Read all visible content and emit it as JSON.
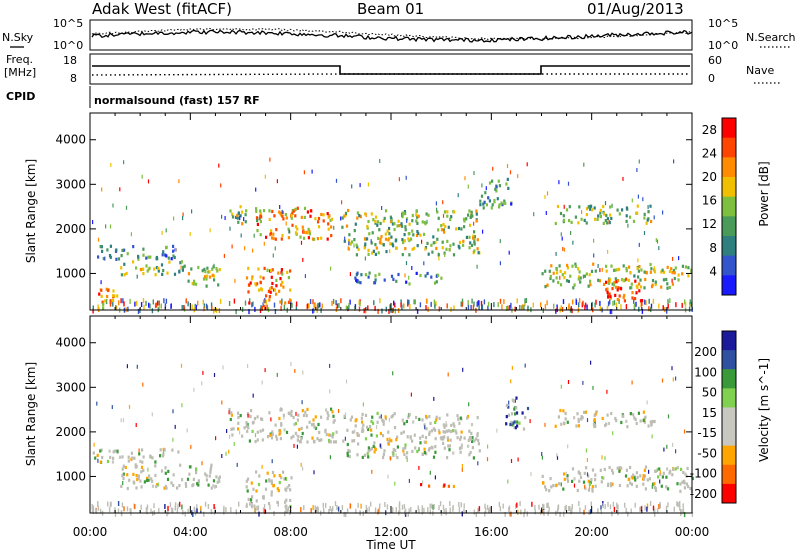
{
  "header": {
    "station": "Adak West (fitACF)",
    "beam": "Beam 01",
    "date": "01/Aug/2013"
  },
  "noise_panel": {
    "left_label": "N.Sky",
    "right_label": "N.Search",
    "left_ticks": [
      "10^5",
      "10^0"
    ],
    "right_ticks": [
      "10^5",
      "10^0"
    ]
  },
  "freq_panel": {
    "left_label": "Freq.",
    "left_unit": "[MHz]",
    "left_ticks": [
      "18",
      "8"
    ],
    "right_label": "Nave",
    "right_ticks": [
      "60",
      "0"
    ],
    "cpid_label": "CPID",
    "cpid_text": "normalsound (fast) 157 RF"
  },
  "colors": {
    "power": [
      "#1a1aff",
      "#3355cc",
      "#2f7f7f",
      "#4a9a5a",
      "#7fbf3f",
      "#f0c000",
      "#ff8c00",
      "#ff4500",
      "#ff0000"
    ],
    "velocity": [
      "#ff0000",
      "#ff6a00",
      "#ffa500",
      "#c8c8c0",
      "#c8c8c0",
      "#7fd14f",
      "#3a9a3a",
      "#3050a0",
      "#1a1a9a"
    ],
    "ground_scatter": "#bdbdb5"
  },
  "chart_data": [
    {
      "type": "heatmap",
      "title": "",
      "xlabel": "",
      "ylabel": "Slant Range [km]",
      "x_ticks": [
        "00:00",
        "04:00",
        "08:00",
        "12:00",
        "16:00",
        "20:00",
        "00:00"
      ],
      "y_ticks": [
        "1000",
        "2000",
        "3000",
        "4000"
      ],
      "ylim": [
        180,
        4600
      ],
      "xlim_hours": [
        0,
        24
      ],
      "colorbar": {
        "label": "Power [dB]",
        "ticks": [
          "4",
          "8",
          "12",
          "16",
          "20",
          "24",
          "28"
        ],
        "range": [
          0,
          30
        ]
      },
      "scatter_regions_hours_km": [
        {
          "t0": 0.0,
          "t1": 3.5,
          "r0": 1350,
          "r1": 1650,
          "level": 0.3
        },
        {
          "t0": 0.3,
          "t1": 1.2,
          "r0": 200,
          "r1": 700,
          "level": 0.7
        },
        {
          "t0": 1.2,
          "t1": 3.8,
          "r0": 1000,
          "r1": 1300,
          "level": 0.45
        },
        {
          "t0": 3.5,
          "t1": 5.2,
          "r0": 750,
          "r1": 1200,
          "level": 0.55
        },
        {
          "t0": 5.5,
          "t1": 6.8,
          "r0": 2150,
          "r1": 2550,
          "level": 0.5
        },
        {
          "t0": 6.2,
          "t1": 8.0,
          "r0": 350,
          "r1": 1150,
          "level": 0.75
        },
        {
          "t0": 6.5,
          "t1": 9.8,
          "r0": 1800,
          "r1": 2500,
          "level": 0.7
        },
        {
          "t0": 10.0,
          "t1": 15.5,
          "r0": 1450,
          "r1": 2450,
          "level": 0.5
        },
        {
          "t0": 10.5,
          "t1": 14.0,
          "r0": 800,
          "r1": 1050,
          "level": 0.3
        },
        {
          "t0": 15.5,
          "t1": 16.8,
          "r0": 2500,
          "r1": 3150,
          "level": 0.3
        },
        {
          "t0": 18.5,
          "t1": 22.5,
          "r0": 2150,
          "r1": 2550,
          "level": 0.45
        },
        {
          "t0": 18.0,
          "t1": 24.0,
          "r0": 700,
          "r1": 1250,
          "level": 0.55
        },
        {
          "t0": 20.5,
          "t1": 22.0,
          "r0": 400,
          "r1": 950,
          "level": 0.9
        }
      ]
    },
    {
      "type": "heatmap",
      "title": "",
      "xlabel": "Time UT",
      "ylabel": "Slant Range [km]",
      "x_ticks": [
        "00:00",
        "04:00",
        "08:00",
        "12:00",
        "16:00",
        "20:00",
        "00:00"
      ],
      "y_ticks": [
        "1000",
        "2000",
        "3000",
        "4000"
      ],
      "ylim": [
        180,
        4600
      ],
      "xlim_hours": [
        0,
        24
      ],
      "colorbar": {
        "label": "Velocity [m s^-1]",
        "ticks": [
          "200",
          "100",
          "50",
          "15",
          "-15",
          "-50",
          "-100",
          "-200"
        ],
        "range": [
          -250,
          250
        ]
      },
      "scatter_regions_hours_km": [
        {
          "t0": 0.0,
          "t1": 3.5,
          "r0": 1350,
          "r1": 1650,
          "level": 0.5
        },
        {
          "t0": 1.2,
          "t1": 5.2,
          "r0": 750,
          "r1": 1300,
          "level": 0.5
        },
        {
          "t0": 5.5,
          "t1": 9.8,
          "r0": 1800,
          "r1": 2550,
          "level": 0.5
        },
        {
          "t0": 6.2,
          "t1": 8.0,
          "r0": 350,
          "r1": 1150,
          "level": 0.5
        },
        {
          "t0": 10.0,
          "t1": 15.5,
          "r0": 1450,
          "r1": 2450,
          "level": 0.5
        },
        {
          "t0": 13.0,
          "t1": 14.5,
          "r0": 780,
          "r1": 880,
          "level": 0.15
        },
        {
          "t0": 16.5,
          "t1": 17.5,
          "r0": 2100,
          "r1": 2800,
          "level": 0.75
        },
        {
          "t0": 18.5,
          "t1": 22.5,
          "r0": 2150,
          "r1": 2550,
          "level": 0.5
        },
        {
          "t0": 18.0,
          "t1": 24.0,
          "r0": 700,
          "r1": 1250,
          "level": 0.5
        }
      ]
    }
  ]
}
